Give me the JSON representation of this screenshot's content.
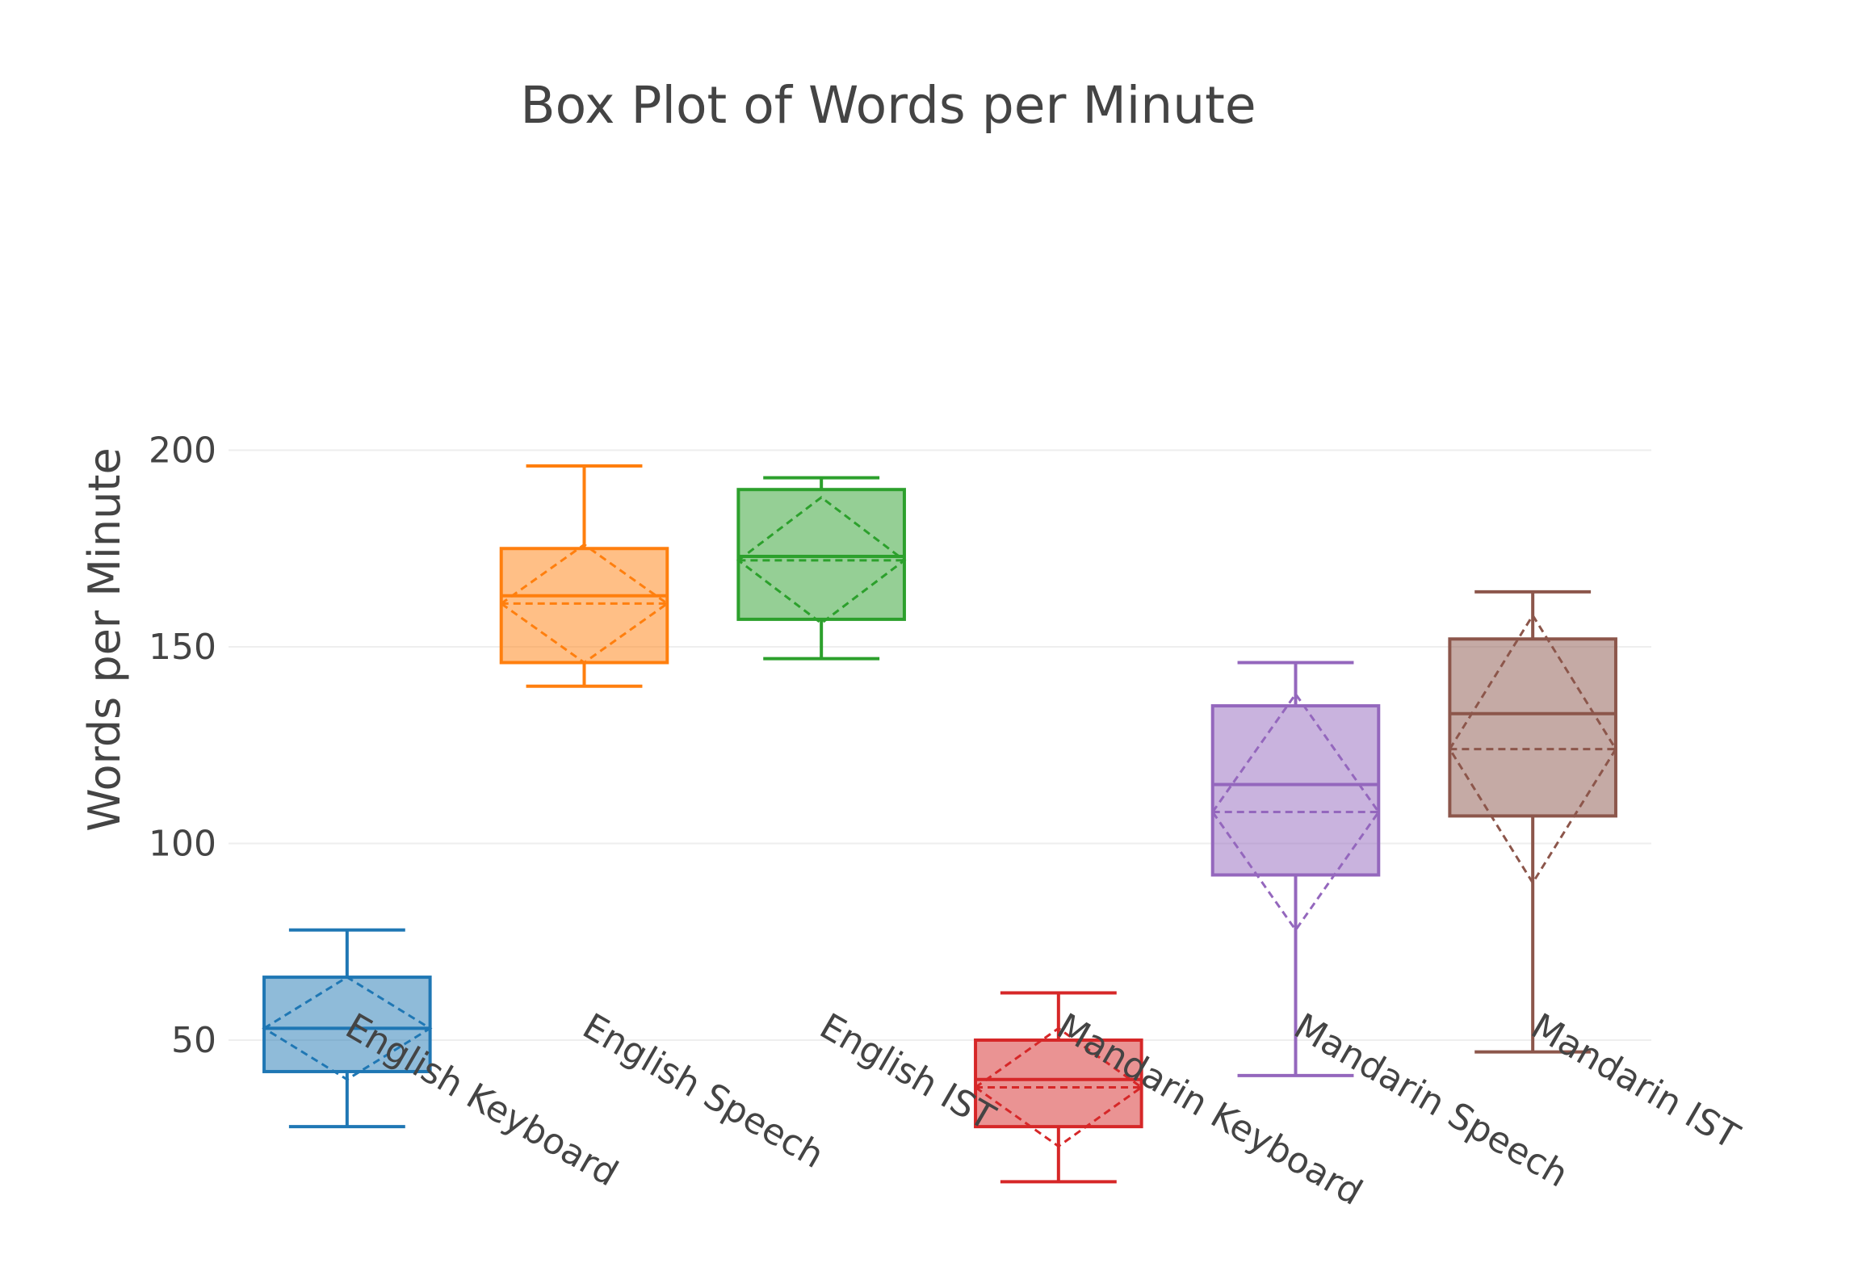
{
  "chart_data": {
    "type": "box",
    "title": "Box Plot of Words per Minute",
    "ylabel": "Words per Minute",
    "xlabel": "",
    "ylim": [
      5,
      210
    ],
    "yticks": [
      50,
      100,
      150,
      200
    ],
    "grid": true,
    "boxmean": "sd",
    "series": [
      {
        "category": "English Keyboard",
        "color": "#1f77b4",
        "min": 28,
        "q1": 42,
        "median": 53,
        "q3": 66,
        "max": 78,
        "mean": 53,
        "sd": 13
      },
      {
        "category": "English Speech",
        "color": "#ff7f0e",
        "min": 140,
        "q1": 146,
        "median": 163,
        "q3": 175,
        "max": 196,
        "mean": 161,
        "sd": 15
      },
      {
        "category": "English IST",
        "color": "#2ca02c",
        "min": 147,
        "q1": 157,
        "median": 173,
        "q3": 190,
        "max": 193,
        "mean": 172,
        "sd": 16
      },
      {
        "category": "Mandarin Keyboard",
        "color": "#d62728",
        "min": 14,
        "q1": 28,
        "median": 40,
        "q3": 50,
        "max": 62,
        "mean": 38,
        "sd": 15
      },
      {
        "category": "Mandarin Speech",
        "color": "#9467bd",
        "min": 41,
        "q1": 92,
        "median": 115,
        "q3": 135,
        "max": 146,
        "mean": 108,
        "sd": 30
      },
      {
        "category": "Mandarin IST",
        "color": "#8c564b",
        "min": 47,
        "q1": 107,
        "median": 133,
        "q3": 152,
        "max": 164,
        "mean": 124,
        "sd": 34
      }
    ]
  }
}
